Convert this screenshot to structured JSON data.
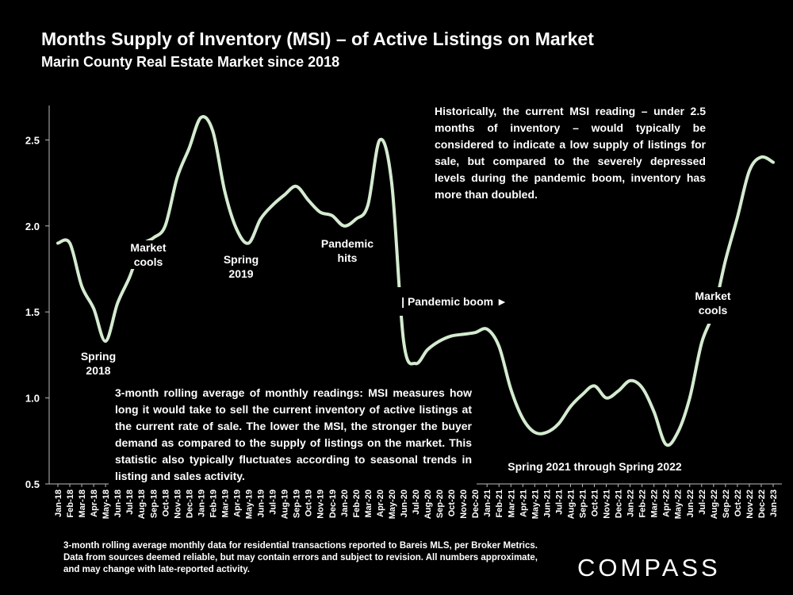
{
  "header": {
    "title": "Months Supply of Inventory (MSI) – of Active Listings on Market",
    "subtitle": "Marin County Real Estate Market since 2018"
  },
  "chart_data": {
    "type": "line",
    "title": "Months Supply of Inventory (MSI) – of Active Listings on Market",
    "subtitle": "Marin County Real Estate Market since 2018",
    "xlabel": "",
    "ylabel": "",
    "ylim": [
      0.5,
      2.7
    ],
    "yticks": [
      "0.5",
      "1.0",
      "1.5",
      "2.0",
      "2.5"
    ],
    "grid": false,
    "line_color": "#d4ebd0",
    "categories": [
      "Jan-18",
      "Feb-18",
      "Mar-18",
      "Apr-18",
      "May-18",
      "Jun-18",
      "Jul-18",
      "Aug-18",
      "Sep-18",
      "Oct-18",
      "Nov-18",
      "Dec-18",
      "Jan-19",
      "Feb-19",
      "Mar-19",
      "Apr-19",
      "May-19",
      "Jun-19",
      "Jul-19",
      "Aug-19",
      "Sep-19",
      "Oct-19",
      "Nov-19",
      "Dec-19",
      "Jan-20",
      "Feb-20",
      "Mar-20",
      "Apr-20",
      "May-20",
      "Jun-20",
      "Jul-20",
      "Aug-20",
      "Sep-20",
      "Oct-20",
      "Nov-20",
      "Dec-20",
      "Jan-21",
      "Feb-21",
      "Mar-21",
      "Apr-21",
      "May-21",
      "Jun-21",
      "Jul-21",
      "Aug-21",
      "Sep-21",
      "Oct-21",
      "Nov-21",
      "Dec-21",
      "Jan-22",
      "Feb-22",
      "Mar-22",
      "Apr-22",
      "May-22",
      "Jun-22",
      "Jul-22",
      "Aug-22",
      "Sep-22",
      "Oct-22",
      "Nov-22",
      "Dec-22",
      "Jan-23"
    ],
    "series": [
      {
        "name": "MSI (3-month rolling average)",
        "values": [
          1.9,
          1.9,
          1.65,
          1.52,
          1.33,
          1.55,
          1.7,
          1.88,
          1.93,
          2.0,
          2.28,
          2.45,
          2.63,
          2.55,
          2.2,
          1.98,
          1.9,
          2.04,
          2.12,
          2.18,
          2.23,
          2.15,
          2.08,
          2.06,
          2.0,
          2.04,
          2.12,
          2.5,
          2.25,
          1.33,
          1.2,
          1.28,
          1.33,
          1.36,
          1.37,
          1.38,
          1.4,
          1.3,
          1.05,
          0.88,
          0.8,
          0.8,
          0.85,
          0.95,
          1.02,
          1.07,
          1.0,
          1.04,
          1.1,
          1.06,
          0.92,
          0.73,
          0.8,
          1.0,
          1.32,
          1.5,
          1.8,
          2.05,
          2.32,
          2.4,
          2.37
        ]
      }
    ]
  },
  "annotations": {
    "spring_2018": [
      "Spring",
      "2018"
    ],
    "market_cools_2018": [
      "Market",
      "cools"
    ],
    "spring_2019": [
      "Spring",
      "2019"
    ],
    "pandemic_hits": [
      "Pandemic",
      "hits"
    ],
    "pandemic_boom": "| Pandemic boom ►",
    "spring_2021_2022": "Spring 2021 through Spring 2022",
    "market_cools_2022": [
      "Market",
      "cools"
    ]
  },
  "historical_note": "Historically, the current MSI reading – under 2.5 months of inventory – would typically be considered to indicate a low supply of listings for sale, but compared to the severely depressed levels during the pandemic boom, inventory has more than doubled.",
  "definition_note": "3-month rolling average of monthly readings: MSI measures how long it would take to sell the current inventory of active listings at the current rate of sale. The lower the MSI, the stronger the buyer demand as compared to the supply of listings on the market. This statistic also typically fluctuates according to seasonal trends in listing and sales activity.",
  "footnote": "3-month rolling average monthly data for residential transactions reported to Bareis MLS, per Broker Metrics. Data from sources deemed reliable, but may contain errors and subject to revision. All numbers approximate, and may change with late-reported activity.",
  "logo": "COMPASS"
}
